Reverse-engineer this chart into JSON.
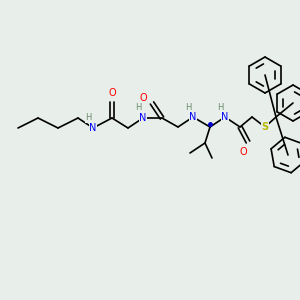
{
  "bg_color": "#e8eeea",
  "atom_colors": {
    "N": "#0000ff",
    "O": "#ff0000",
    "S": "#b8b800",
    "H": "#6a8a6a",
    "C": "#000000"
  },
  "bond_color": "#000000",
  "bond_lw": 1.2,
  "font_size": 7.0
}
